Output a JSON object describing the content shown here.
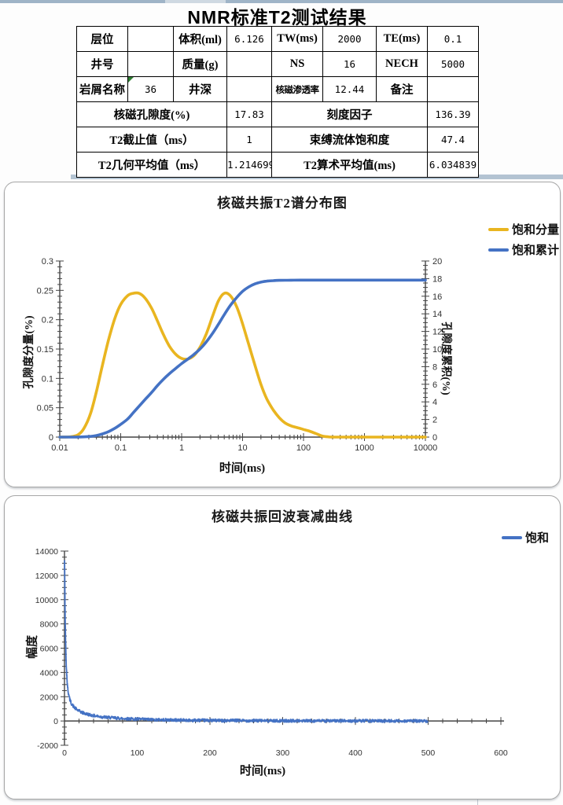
{
  "param_table": {
    "title": "NMR标准T2测试结果",
    "rows": [
      [
        "层位",
        "",
        "体积(ml)",
        "6.126",
        "TW(ms)",
        "2000",
        "TE(ms)",
        "0.1"
      ],
      [
        "井号",
        "",
        "质量(g)",
        "",
        "NS",
        "16",
        "NECH",
        "5000"
      ],
      [
        "岩屑名称",
        "36",
        "井深",
        "",
        "核磁渗透率",
        "12.44",
        "备注",
        ""
      ],
      [
        "核磁孔隙度(%)",
        "17.83",
        "刻度因子",
        "136.39"
      ],
      [
        "T2截止值（ms）",
        "1",
        "束缚流体饱和度",
        "47.4"
      ],
      [
        "T2几何平均值（ms）",
        "1.214699",
        "T2算术平均值(ms)",
        "6.034839"
      ]
    ]
  },
  "chart_data": [
    {
      "type": "line",
      "title": "核磁共振T2谱分布图",
      "xlabel": "时间(ms)",
      "ylabel_left": "孔隙度分量(%)",
      "ylabel_right": "孔隙度累积(%)",
      "x_scale": "log",
      "xlim": [
        0.01,
        10000
      ],
      "xticks": [
        0.01,
        0.1,
        1,
        10,
        100,
        1000,
        10000
      ],
      "ylim_left": [
        0,
        0.3
      ],
      "ytick_left": 0.05,
      "ylim_right": [
        0,
        20
      ],
      "ytick_right": 2,
      "grid": false,
      "legend_position": "right-top",
      "series": [
        {
          "name": "饱和分量",
          "axis": "left",
          "color": "#E9B520",
          "points": [
            [
              0.01,
              0
            ],
            [
              0.015,
              0.0005
            ],
            [
              0.02,
              0.004
            ],
            [
              0.025,
              0.015
            ],
            [
              0.032,
              0.04
            ],
            [
              0.04,
              0.078
            ],
            [
              0.05,
              0.122
            ],
            [
              0.063,
              0.165
            ],
            [
              0.08,
              0.202
            ],
            [
              0.1,
              0.226
            ],
            [
              0.13,
              0.241
            ],
            [
              0.16,
              0.245
            ],
            [
              0.2,
              0.245
            ],
            [
              0.25,
              0.237
            ],
            [
              0.32,
              0.22
            ],
            [
              0.4,
              0.198
            ],
            [
              0.5,
              0.175
            ],
            [
              0.63,
              0.155
            ],
            [
              0.8,
              0.141
            ],
            [
              1,
              0.134
            ],
            [
              1.26,
              0.133
            ],
            [
              1.6,
              0.139
            ],
            [
              2,
              0.153
            ],
            [
              2.5,
              0.174
            ],
            [
              3.2,
              0.205
            ],
            [
              4,
              0.232
            ],
            [
              5,
              0.245
            ],
            [
              6.3,
              0.241
            ],
            [
              8,
              0.222
            ],
            [
              10,
              0.193
            ],
            [
              12.6,
              0.158
            ],
            [
              16,
              0.122
            ],
            [
              20,
              0.09
            ],
            [
              25,
              0.065
            ],
            [
              32,
              0.046
            ],
            [
              40,
              0.033
            ],
            [
              50,
              0.024
            ],
            [
              63,
              0.019
            ],
            [
              80,
              0.016
            ],
            [
              100,
              0.013
            ],
            [
              126,
              0.01
            ],
            [
              160,
              0.006
            ],
            [
              200,
              0.002
            ],
            [
              250,
              0.0005
            ],
            [
              320,
              0
            ],
            [
              1000,
              0
            ],
            [
              10000,
              0
            ]
          ]
        },
        {
          "name": "饱和累计",
          "axis": "right",
          "color": "#4472C4",
          "points": [
            [
              0.01,
              0
            ],
            [
              0.02,
              0.01
            ],
            [
              0.03,
              0.06
            ],
            [
              0.04,
              0.18
            ],
            [
              0.05,
              0.36
            ],
            [
              0.063,
              0.62
            ],
            [
              0.08,
              1.0
            ],
            [
              0.1,
              1.45
            ],
            [
              0.13,
              2.05
            ],
            [
              0.16,
              2.75
            ],
            [
              0.2,
              3.5
            ],
            [
              0.25,
              4.25
            ],
            [
              0.32,
              5.05
            ],
            [
              0.4,
              5.85
            ],
            [
              0.5,
              6.55
            ],
            [
              0.63,
              7.2
            ],
            [
              0.8,
              7.8
            ],
            [
              1,
              8.35
            ],
            [
              1.26,
              8.85
            ],
            [
              1.6,
              9.4
            ],
            [
              2,
              10.0
            ],
            [
              2.5,
              10.75
            ],
            [
              3.2,
              11.75
            ],
            [
              4,
              12.8
            ],
            [
              5,
              13.9
            ],
            [
              6.3,
              14.95
            ],
            [
              8,
              15.85
            ],
            [
              10,
              16.55
            ],
            [
              12.6,
              17.05
            ],
            [
              16,
              17.4
            ],
            [
              20,
              17.6
            ],
            [
              25,
              17.71
            ],
            [
              32,
              17.77
            ],
            [
              40,
              17.8
            ],
            [
              63,
              17.82
            ],
            [
              100,
              17.83
            ],
            [
              1000,
              17.83
            ],
            [
              10000,
              17.83
            ]
          ]
        }
      ]
    },
    {
      "type": "line",
      "title": "核磁共振回波衰减曲线",
      "xlabel": "时间(ms)",
      "ylabel": "幅度",
      "xlim": [
        0,
        600
      ],
      "xtick": 100,
      "xtick_minor": 20,
      "ylim": [
        -2000,
        14000
      ],
      "ytick": 2000,
      "ytick_minor": 500,
      "grid": false,
      "legend_position": "right-top",
      "series": [
        {
          "name": "饱和",
          "color": "#4472C4",
          "t_start": 0.1,
          "t_end": 500,
          "noise_amplitude": 120,
          "envelope_points": [
            [
              0,
              13800
            ],
            [
              0.3,
              12000
            ],
            [
              0.6,
              10300
            ],
            [
              1,
              8400
            ],
            [
              1.5,
              6700
            ],
            [
              2,
              5450
            ],
            [
              2.5,
              4550
            ],
            [
              3,
              3900
            ],
            [
              4,
              3000
            ],
            [
              5,
              2450
            ],
            [
              6,
              2080
            ],
            [
              8,
              1640
            ],
            [
              10,
              1400
            ],
            [
              13,
              1150
            ],
            [
              16,
              980
            ],
            [
              20,
              820
            ],
            [
              25,
              680
            ],
            [
              30,
              580
            ],
            [
              40,
              440
            ],
            [
              50,
              345
            ],
            [
              60,
              285
            ],
            [
              80,
              205
            ],
            [
              100,
              150
            ],
            [
              130,
              100
            ],
            [
              160,
              70
            ],
            [
              200,
              45
            ],
            [
              250,
              28
            ],
            [
              300,
              16
            ],
            [
              400,
              6
            ],
            [
              500,
              2
            ]
          ]
        }
      ]
    }
  ]
}
